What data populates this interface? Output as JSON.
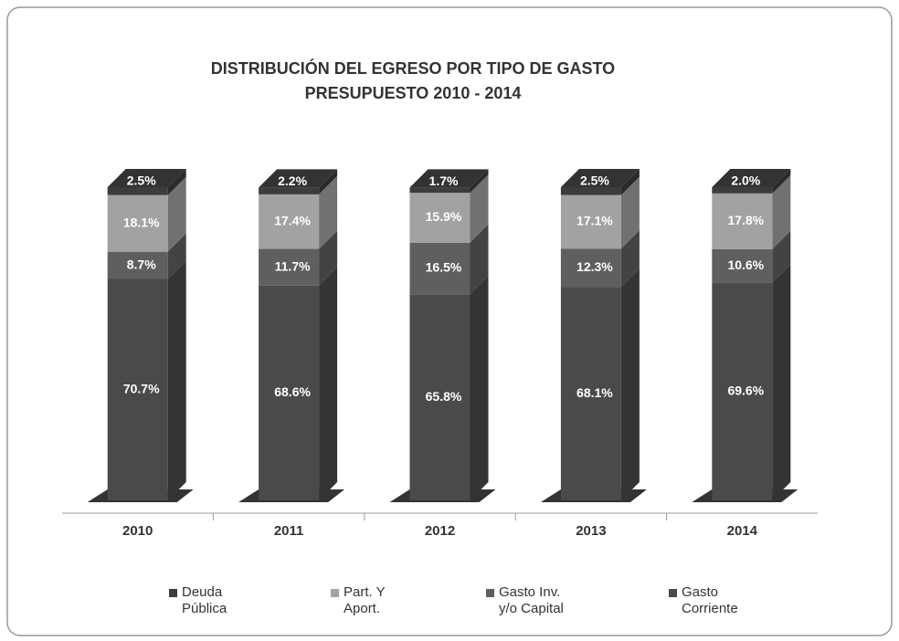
{
  "chart_data": {
    "type": "bar3d_stacked",
    "title": "DISTRIBUCIÓN DEL EGRESO POR TIPO DE GASTO",
    "subtitle": "PRESUPUESTO 2010 - 2014",
    "categories": [
      "2010",
      "2011",
      "2012",
      "2013",
      "2014"
    ],
    "series": [
      {
        "name": "Deuda Pública",
        "color": "#3c3c3c",
        "values": [
          2.5,
          2.2,
          1.7,
          2.5,
          2.0
        ],
        "value_labels": [
          "2.5%",
          "2.2%",
          "1.7%",
          "2.5%",
          "2.0%"
        ]
      },
      {
        "name": "Part. Y Aport.",
        "color": "#a2a2a2",
        "values": [
          18.1,
          17.4,
          15.9,
          17.1,
          17.8
        ],
        "value_labels": [
          "18.1%",
          "17.4%",
          "15.9%",
          "17.1%",
          "17.8%"
        ]
      },
      {
        "name": "Gasto Inv. y/o Capital",
        "color": "#5f5f5f",
        "values": [
          8.7,
          11.7,
          16.5,
          12.3,
          10.6
        ],
        "value_labels": [
          "8.7%",
          "11.7%",
          "16.5%",
          "12.3%",
          "10.6%"
        ]
      },
      {
        "name": "Gasto Corriente",
        "color": "#4a4a4a",
        "values": [
          70.7,
          68.6,
          65.8,
          68.1,
          69.6
        ],
        "value_labels": [
          "70.7%",
          "68.6%",
          "65.8%",
          "68.1%",
          "69.6%"
        ]
      }
    ],
    "legend": "bottom"
  }
}
